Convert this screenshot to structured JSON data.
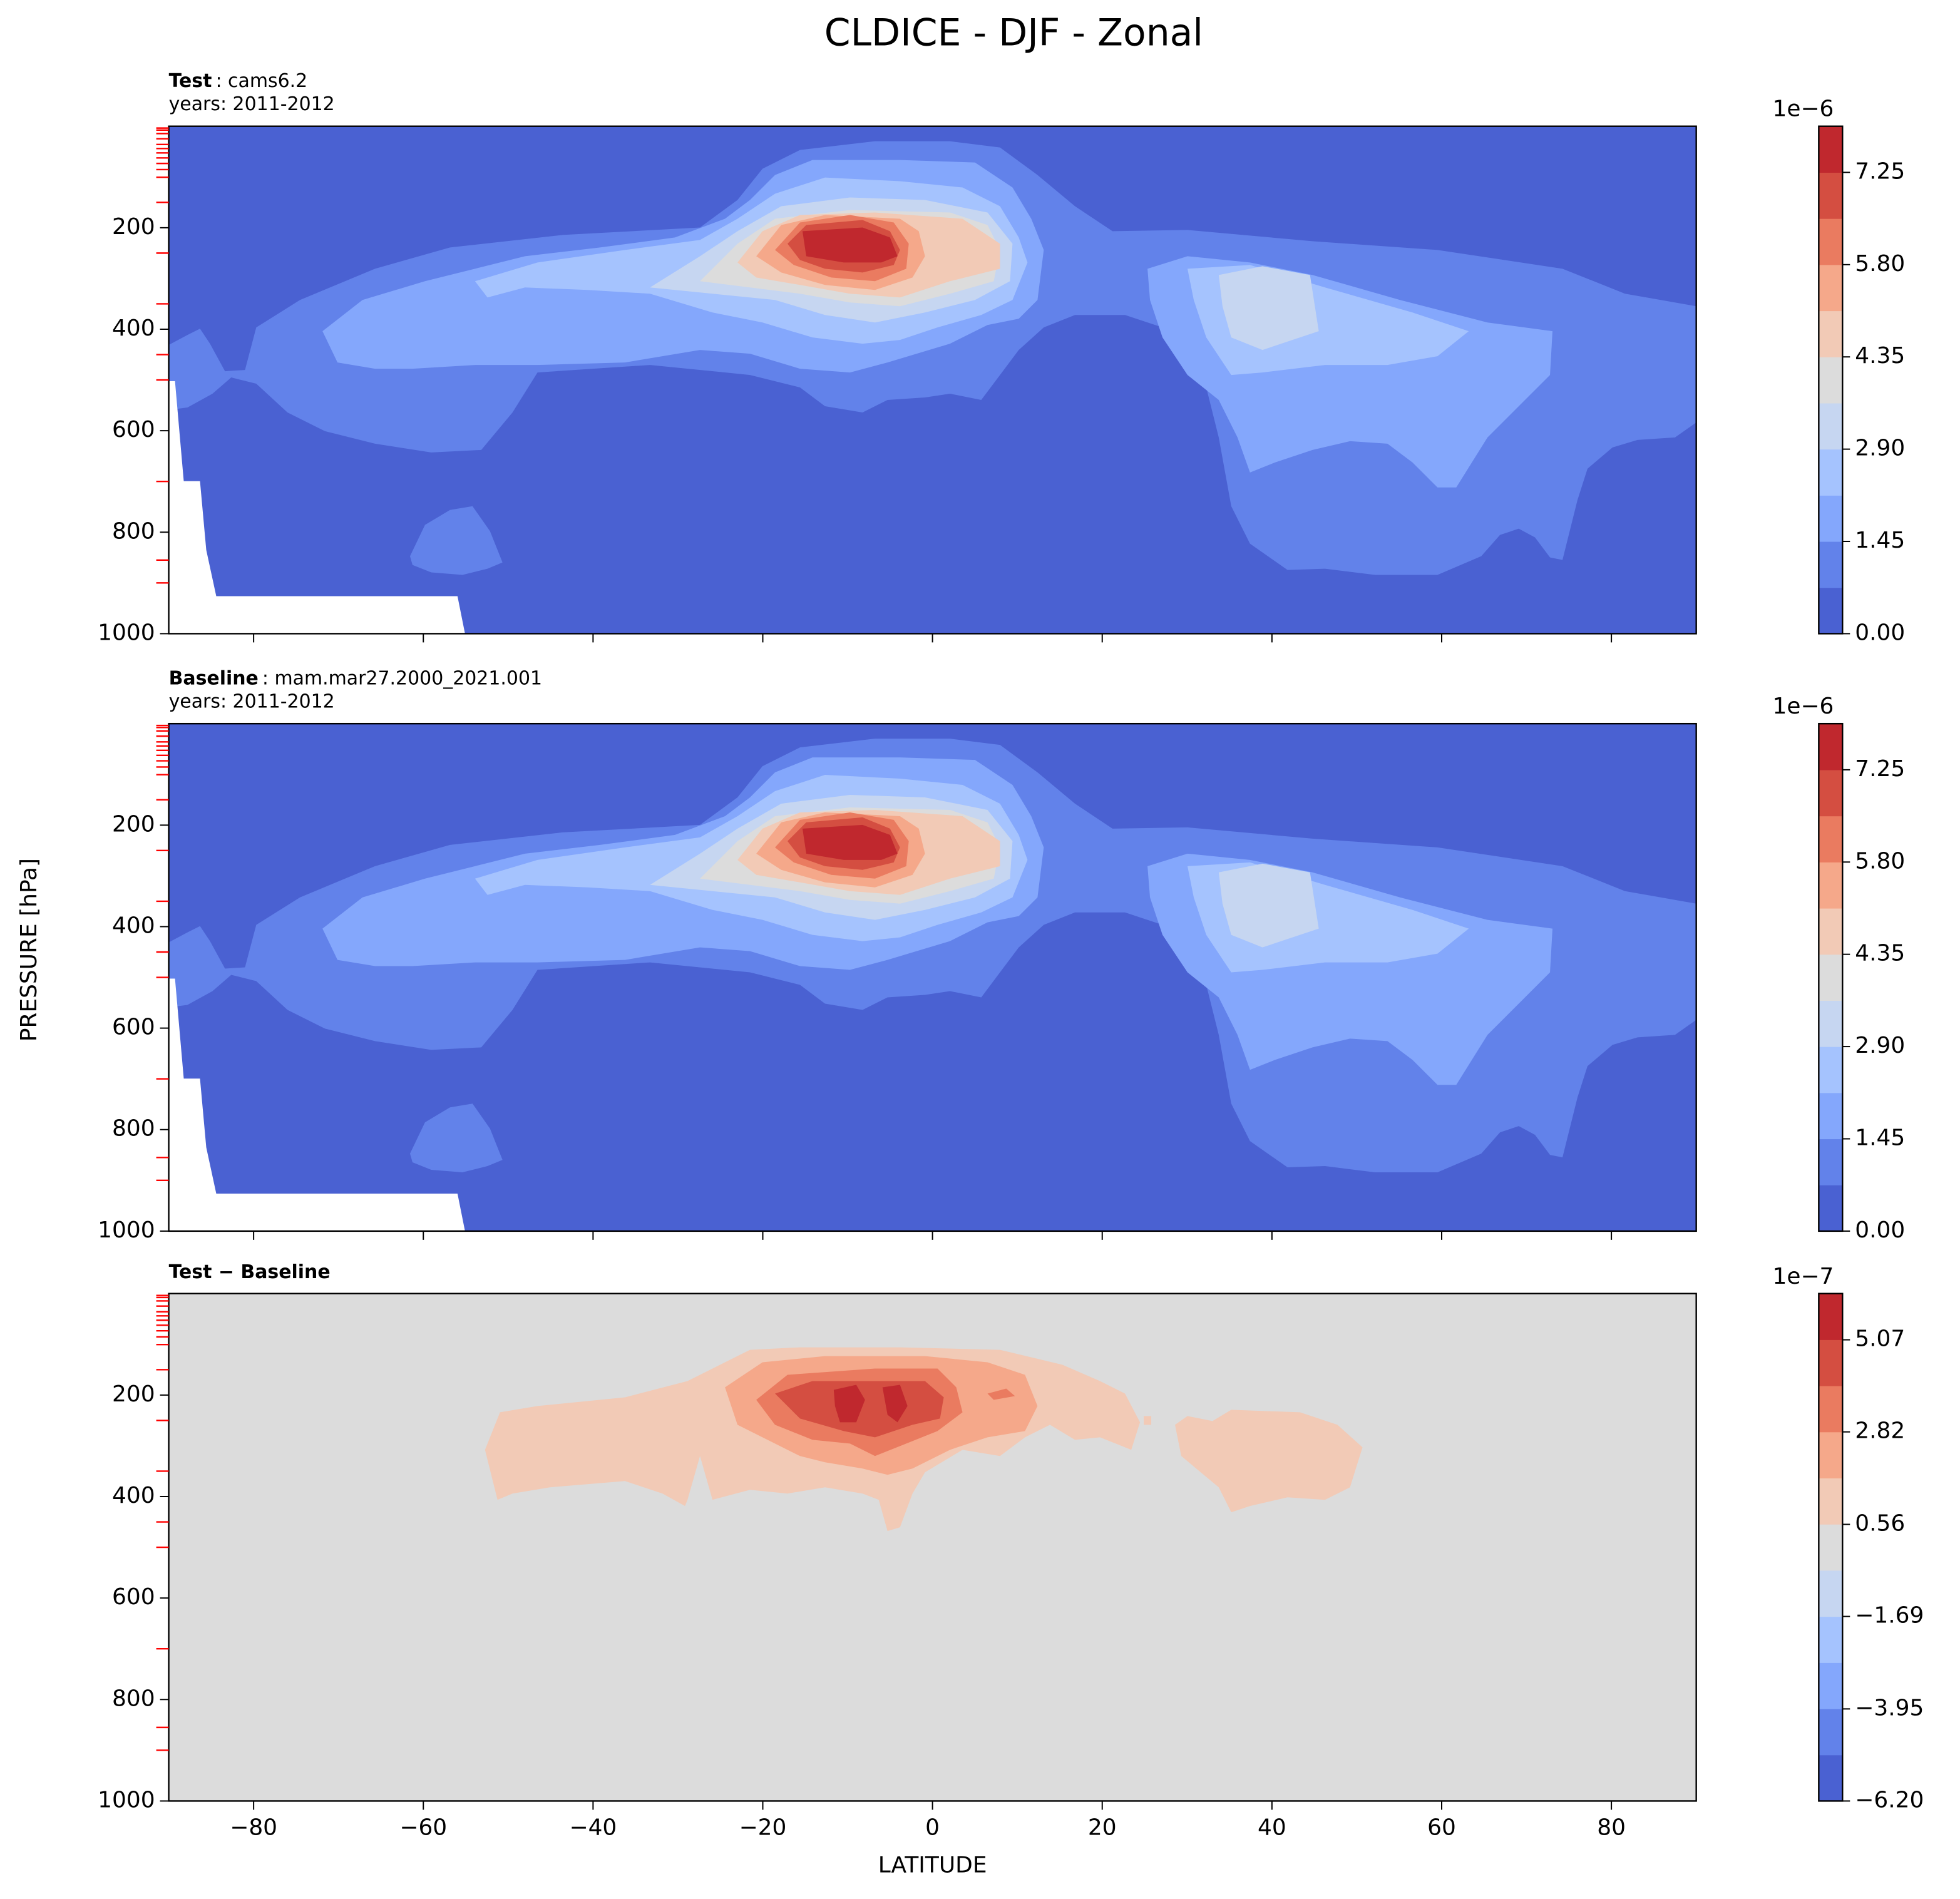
{
  "title": "CLDICE - DJF - Zonal",
  "ylabel": "PRESSURE [hPa]",
  "colors": [
    "#4a61d2",
    "#6282ea",
    "#84a7fc",
    "#a5c3fe",
    "#c6d6f1",
    "#dcdcdc",
    "#f2cab6",
    "#f5a88a",
    "#ea7b60",
    "#d44e41",
    "#c0282e"
  ],
  "chart_data": [
    {
      "type": "contour",
      "title": {
        "bold": "Test",
        "rest": ": cams6.2"
      },
      "subtitle": "years: 2011-2012",
      "xlim": [
        -90,
        90
      ],
      "xticks": [
        {
          "value": -80,
          "label": "−80"
        },
        {
          "value": -60,
          "label": "−60"
        },
        {
          "value": -40,
          "label": "−40"
        },
        {
          "value": -20,
          "label": "−20"
        },
        0,
        20,
        40,
        60,
        80
      ],
      "show_xtick_labels": false,
      "ylim": [
        1000,
        0
      ],
      "yticks": [
        200,
        400,
        600,
        800,
        1000
      ],
      "model_levels": [
        3.6,
        7.6,
        14.4,
        24.6,
        35.9,
        43.9,
        52.6,
        62.4,
        73.3,
        85.4,
        100.5,
        150,
        250,
        350,
        450,
        500,
        700,
        855,
        900
      ],
      "level_tick_color": "#ff0000",
      "colorbar_offset_label": "1e−6",
      "levels": [
        0,
        0.725,
        1.45,
        2.175,
        2.9,
        3.625,
        4.35,
        5.075,
        5.8,
        6.525,
        7.25,
        7.975
      ],
      "colorbar_ticks": [
        {
          "value": 0,
          "label": "0.00"
        },
        1.45,
        {
          "value": 2.9,
          "label": "2.90"
        },
        4.35,
        {
          "value": 5.8,
          "label": "5.80"
        },
        7.25
      ]
    },
    {
      "type": "contour",
      "title": {
        "bold": "Baseline",
        "rest": ": mam.mar27.2000_2021.001"
      },
      "subtitle": "years: 2011-2012",
      "xlim": [
        -90,
        90
      ],
      "xticks": [
        {
          "value": -80,
          "label": "−80"
        },
        {
          "value": -60,
          "label": "−60"
        },
        {
          "value": -40,
          "label": "−40"
        },
        {
          "value": -20,
          "label": "−20"
        },
        0,
        20,
        40,
        60,
        80
      ],
      "show_xtick_labels": false,
      "ylim": [
        1000,
        0
      ],
      "yticks": [
        200,
        400,
        600,
        800,
        1000
      ],
      "model_levels": [
        3.6,
        7.6,
        14.4,
        24.6,
        35.9,
        43.9,
        52.6,
        62.4,
        73.3,
        85.4,
        100.5,
        150,
        250,
        350,
        450,
        500,
        700,
        855,
        900
      ],
      "level_tick_color": "#ff0000",
      "colorbar_offset_label": "1e−6",
      "levels": [
        0,
        0.725,
        1.45,
        2.175,
        2.9,
        3.625,
        4.35,
        5.075,
        5.8,
        6.525,
        7.25,
        7.975
      ],
      "colorbar_ticks": [
        {
          "value": 0,
          "label": "0.00"
        },
        1.45,
        {
          "value": 2.9,
          "label": "2.90"
        },
        4.35,
        {
          "value": 5.8,
          "label": "5.80"
        },
        7.25
      ]
    },
    {
      "type": "contour",
      "title": {
        "bold": "Test − Baseline"
      },
      "xlabel": "LATITUDE",
      "xlim": [
        -90,
        90
      ],
      "xticks": [
        {
          "value": -80,
          "label": "−80"
        },
        {
          "value": -60,
          "label": "−60"
        },
        {
          "value": -40,
          "label": "−40"
        },
        {
          "value": -20,
          "label": "−20"
        },
        0,
        20,
        40,
        60,
        80
      ],
      "show_xtick_labels": true,
      "ylim": [
        1000,
        0
      ],
      "yticks": [
        200,
        400,
        600,
        800,
        1000
      ],
      "model_levels": [
        3.6,
        7.6,
        14.4,
        24.6,
        35.9,
        43.9,
        52.6,
        62.4,
        73.3,
        85.4,
        100.5,
        150,
        250,
        350,
        450,
        500,
        700,
        855,
        900
      ],
      "level_tick_color": "#ff0000",
      "colorbar_offset_label": "1e−7",
      "levels": [
        -6.2,
        -5.0725,
        -3.945,
        -2.8175,
        -1.69,
        -0.5625,
        0.565,
        1.6925,
        2.82,
        3.9475,
        5.075,
        6.2
      ],
      "colorbar_ticks": [
        {
          "value": -6.2,
          "label": "−6.20"
        },
        {
          "value": -3.95,
          "label": "−3.95"
        },
        {
          "value": -1.69,
          "label": "−1.69"
        },
        0.56,
        2.82,
        5.07
      ]
    }
  ]
}
